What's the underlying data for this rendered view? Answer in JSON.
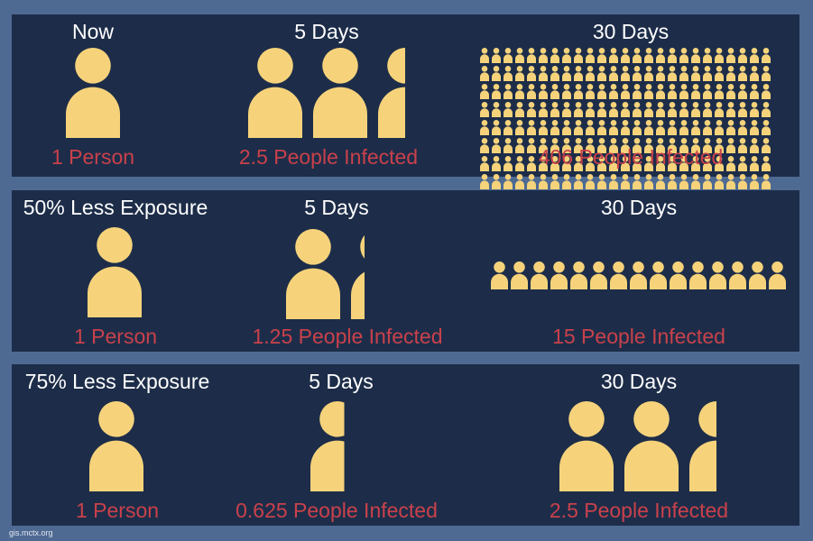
{
  "colors": {
    "background": "#4e6a93",
    "panel": "#1d2d49",
    "person": "#f6d37b",
    "heading_text": "#ffffff",
    "caption_text": "#c9414b"
  },
  "icons": {
    "person": "person-icon"
  },
  "panels": [
    {
      "columns": [
        {
          "heading": "Now",
          "caption": "1 Person",
          "people": 1
        },
        {
          "heading": "5 Days",
          "caption": "2.5 People Infected",
          "people": 2.5
        },
        {
          "heading": "30 Days",
          "caption": "406 People Infected",
          "people": 406
        }
      ]
    },
    {
      "columns": [
        {
          "heading": "50% Less Exposure",
          "caption": "1 Person",
          "people": 1
        },
        {
          "heading": "5 Days",
          "caption": "1.25 People Infected",
          "people": 1.25
        },
        {
          "heading": "30 Days",
          "caption": "15 People Infected",
          "people": 15
        }
      ]
    },
    {
      "columns": [
        {
          "heading": "75% Less Exposure",
          "caption": "1 Person",
          "people": 1
        },
        {
          "heading": "5 Days",
          "caption": "0.625 People Infected",
          "people": 0.625
        },
        {
          "heading": "30 Days",
          "caption": "2.5 People Infected",
          "people": 2.5
        }
      ]
    }
  ],
  "footer": {
    "text": "gis.mctx.org"
  }
}
